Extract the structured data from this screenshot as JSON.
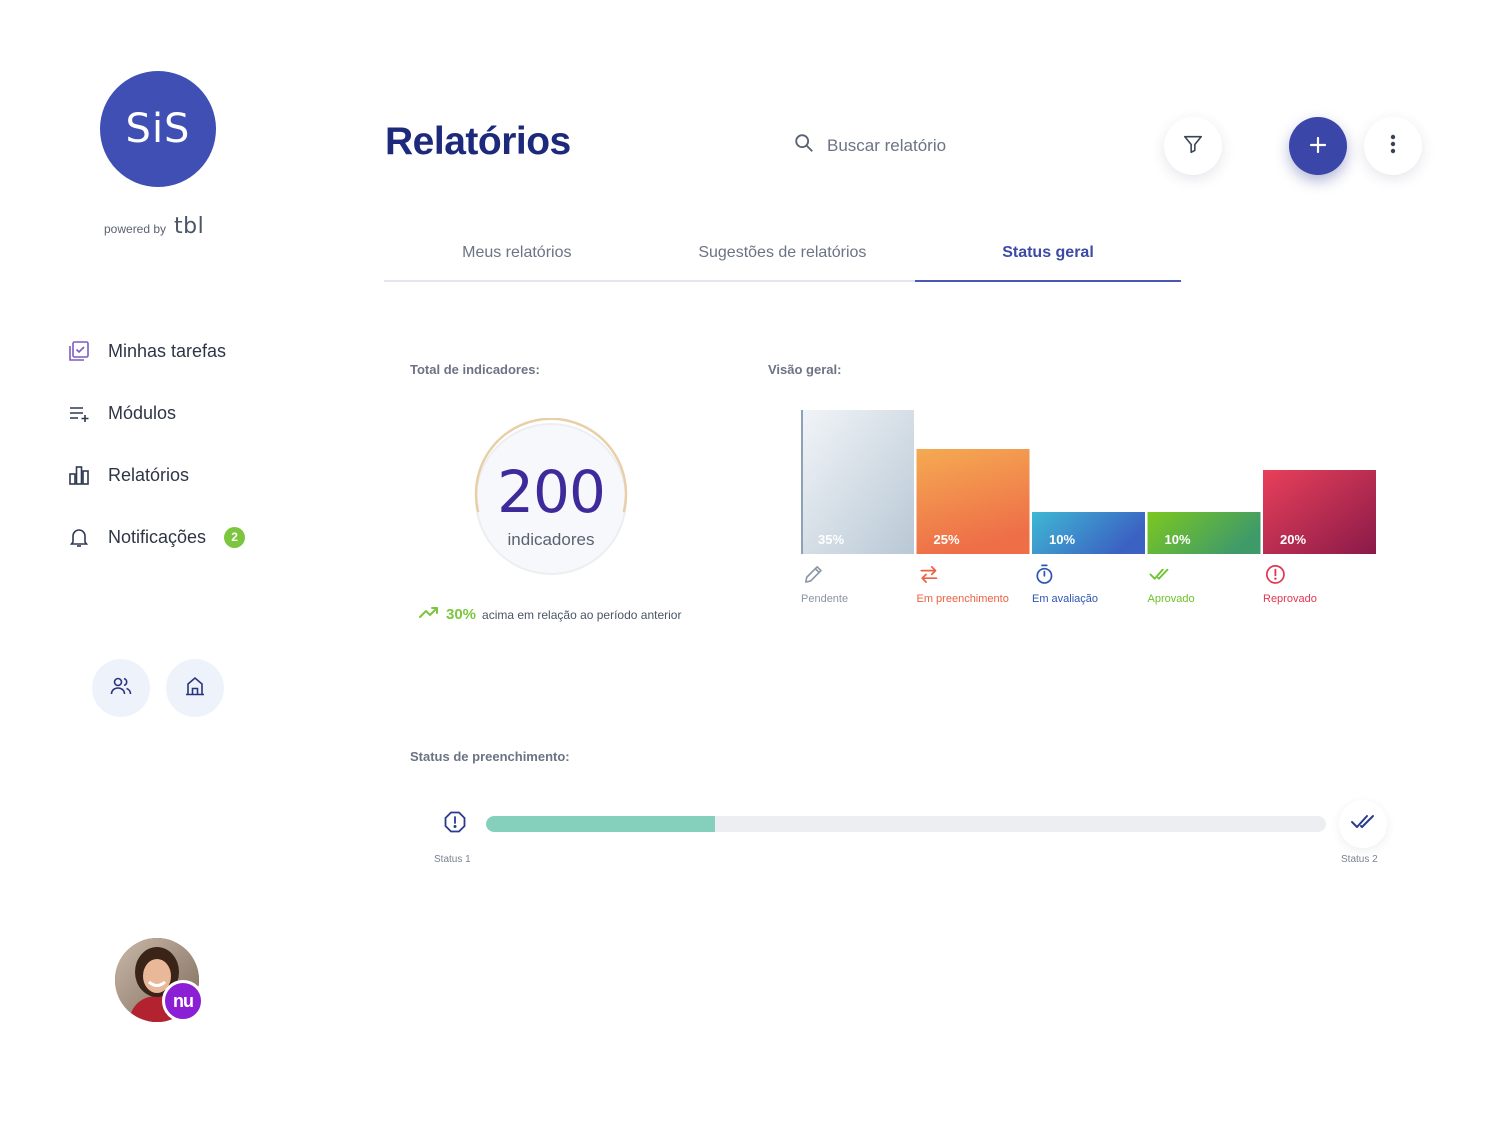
{
  "brand": {
    "logo_text": "SiS",
    "powered_by": "powered by",
    "partner": "tbl"
  },
  "sidebar": {
    "items": [
      {
        "label": "Minhas tarefas",
        "icon": "tasks-icon"
      },
      {
        "label": "Módulos",
        "icon": "playlist-add-icon"
      },
      {
        "label": "Relatórios",
        "icon": "bar-chart-icon"
      },
      {
        "label": "Notificações",
        "icon": "bell-icon",
        "badge": "2"
      }
    ],
    "quick_actions": [
      "users-icon",
      "home-icon"
    ],
    "user": {
      "avatar": "user-avatar",
      "company_badge": "nu"
    }
  },
  "header": {
    "title": "Relatórios",
    "search_placeholder": "Buscar relatório",
    "buttons": [
      "filter-icon",
      "plus-icon",
      "more-vertical-icon"
    ]
  },
  "tabs": [
    {
      "label": "Meus relatórios",
      "active": false
    },
    {
      "label": "Sugestões de relatórios",
      "active": false
    },
    {
      "label": "Status geral",
      "active": true
    }
  ],
  "total": {
    "label": "Total de indicadores:",
    "value": "200",
    "unit": "indicadores",
    "trend_pct": "30%",
    "trend_text": "acima em relação ao período anterior"
  },
  "overview": {
    "label": "Visão geral:",
    "chart_data": {
      "type": "bar",
      "categories": [
        "Pendente",
        "Em preenchimento",
        "Em avaliação",
        "Aprovado",
        "Reprovado"
      ],
      "values": [
        35,
        25,
        10,
        10,
        20
      ],
      "value_labels": [
        "35%",
        "25%",
        "10%",
        "10%",
        "20%"
      ],
      "colors": [
        [
          "#f2f5f8",
          "#b9c8d5"
        ],
        [
          "#f5aa52",
          "#ee6e48"
        ],
        [
          "#3fb8d3",
          "#3b61c3"
        ],
        [
          "#7cc81f",
          "#3f9a6a"
        ],
        [
          "#e8405a",
          "#8a1a49"
        ]
      ],
      "label_colors": [
        "#8a95a5",
        "#ee6040",
        "#2f55b3",
        "#6cc22a",
        "#e03650"
      ],
      "icons": [
        "pencil-icon",
        "swap-icon",
        "timer-icon",
        "double-check-icon",
        "alert-circle-icon"
      ],
      "ylim": [
        0,
        40
      ]
    }
  },
  "fill_status": {
    "label": "Status de preenchimento:",
    "progress": 0.273,
    "start_label": "Status 1",
    "end_label": "Status 2"
  }
}
